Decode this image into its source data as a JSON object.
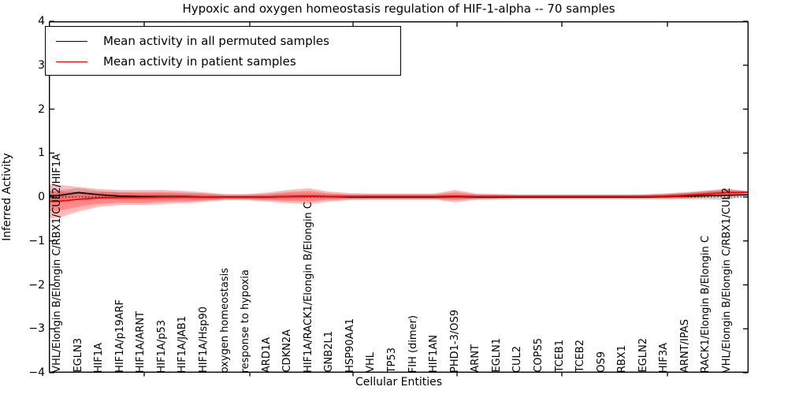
{
  "figure": {
    "title": "Hypoxic and oxygen homeostasis regulation of HIF-1-alpha -- 70 samples",
    "xlabel": "Cellular Entities",
    "ylabel": "Inferred Activity"
  },
  "legend": {
    "items": [
      {
        "label": "Mean activity in all permuted samples",
        "color": "#000000"
      },
      {
        "label": "Mean activity in patient samples",
        "color": "#ff0000"
      }
    ]
  },
  "chart_data": {
    "type": "line",
    "title": "Hypoxic and oxygen homeostasis regulation of HIF-1-alpha -- 70 samples",
    "xlabel": "Cellular Entities",
    "ylabel": "Inferred Activity",
    "ylim": [
      -4,
      4
    ],
    "yticks": [
      4,
      3,
      2,
      1,
      0,
      -1,
      -2,
      -3,
      -4
    ],
    "grid": false,
    "zero_line": true,
    "legend_position": "upper left",
    "categories": [
      "VHL/Elongin B/Elongin C/RBX1/CUL2/HIF1A",
      "EGLN3",
      "HIF1A",
      "HIF1A/p19ARF",
      "HIF1A/ARNT",
      "HIF1A/p53",
      "HIF1A/JAB1",
      "HIF1A/Hsp90",
      "oxygen homeostasis",
      "response to hypoxia",
      "ARD1A",
      "CDKN2A",
      "HIF1A/RACK1/Elongin B/Elongin C",
      "GNB2L1",
      "HSP90AA1",
      "VHL",
      "TP53",
      "FIH (dimer)",
      "HIF1AN",
      "PHD1-3/OS9",
      "ARNT",
      "EGLN1",
      "CUL2",
      "COPS5",
      "TCEB1",
      "TCEB2",
      "OS9",
      "RBX1",
      "EGLN2",
      "HIF3A",
      "ARNT/IPAS",
      "RACK1/Elongin B/Elongin C",
      "VHL/Elongin B/Elongin C/RBX1/CUL2"
    ],
    "series": [
      {
        "name": "Mean activity in all permuted samples",
        "color": "#000000",
        "values": [
          0.03,
          0.1,
          0.05,
          0.02,
          0.01,
          0.01,
          0.01,
          0.0,
          0.0,
          0.0,
          0.0,
          0.01,
          0.02,
          0.01,
          0.0,
          0.0,
          0.0,
          0.0,
          0.0,
          0.01,
          0.0,
          0.0,
          0.0,
          0.0,
          0.0,
          0.0,
          0.0,
          0.0,
          0.0,
          0.01,
          0.02,
          0.03,
          0.04
        ]
      },
      {
        "name": "Mean activity in patient samples",
        "color": "#ff0000",
        "values": [
          -0.1,
          -0.05,
          -0.02,
          -0.01,
          -0.01,
          0.0,
          0.0,
          0.0,
          0.0,
          0.0,
          0.0,
          0.01,
          0.02,
          0.01,
          0.01,
          0.01,
          0.01,
          0.01,
          0.01,
          0.02,
          0.01,
          0.01,
          0.01,
          0.01,
          0.01,
          0.01,
          0.01,
          0.01,
          0.01,
          0.02,
          0.04,
          0.07,
          0.1
        ]
      }
    ],
    "bands": [
      {
        "name": "permuted-samples-range",
        "center_series": 0,
        "color": "#808080",
        "alpha": 0.32,
        "halfwidths": [
          0.12,
          0.1,
          0.09,
          0.08,
          0.07,
          0.07,
          0.06,
          0.06,
          0.05,
          0.05,
          0.05,
          0.06,
          0.06,
          0.05,
          0.05,
          0.05,
          0.05,
          0.05,
          0.05,
          0.05,
          0.05,
          0.05,
          0.05,
          0.05,
          0.05,
          0.05,
          0.05,
          0.05,
          0.06,
          0.06,
          0.07,
          0.09,
          0.11
        ]
      },
      {
        "name": "patient-samples-range-outer",
        "center_series": 1,
        "color": "#ff0000",
        "alpha": 0.27,
        "halfwidths": [
          0.38,
          0.28,
          0.2,
          0.17,
          0.17,
          0.16,
          0.14,
          0.11,
          0.07,
          0.07,
          0.1,
          0.15,
          0.18,
          0.11,
          0.08,
          0.07,
          0.07,
          0.07,
          0.07,
          0.14,
          0.07,
          0.06,
          0.05,
          0.05,
          0.05,
          0.05,
          0.05,
          0.05,
          0.05,
          0.06,
          0.07,
          0.08,
          0.09
        ]
      },
      {
        "name": "patient-samples-range-inner",
        "center_series": 1,
        "color": "#ff0000",
        "alpha": 0.27,
        "halfwidths": [
          0.22,
          0.17,
          0.13,
          0.12,
          0.12,
          0.11,
          0.1,
          0.08,
          0.04,
          0.04,
          0.07,
          0.1,
          0.12,
          0.07,
          0.05,
          0.05,
          0.05,
          0.05,
          0.05,
          0.09,
          0.05,
          0.04,
          0.03,
          0.03,
          0.03,
          0.03,
          0.03,
          0.03,
          0.03,
          0.04,
          0.05,
          0.06,
          0.07
        ]
      }
    ]
  }
}
